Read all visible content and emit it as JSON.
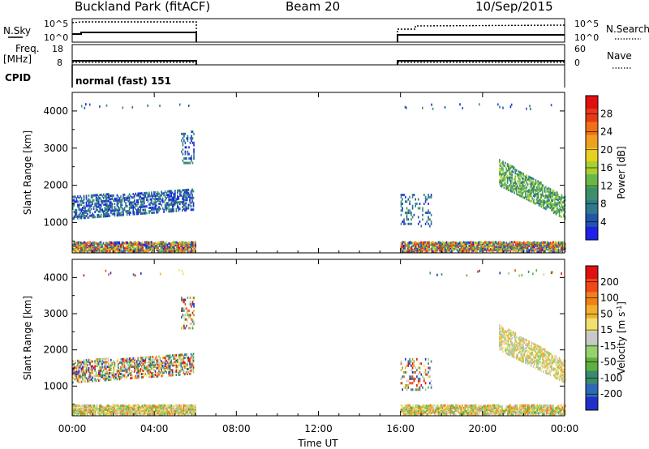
{
  "header": {
    "station": "Buckland Park (fitACF)",
    "beam": "Beam 20",
    "date": "10/Sep/2015"
  },
  "panels": {
    "sky_search": {
      "left_label": "N.Sky",
      "right_label": "N.Search",
      "left_ticks": [
        "10^5",
        "10^0"
      ],
      "right_ticks": [
        "10^5",
        "10^0"
      ]
    },
    "freq_nave": {
      "left_label_1": "Freq.",
      "left_label_2": "[MHz]",
      "right_label": "Nave",
      "left_ticks": [
        "18",
        "8"
      ],
      "right_ticks": [
        "60",
        "0"
      ]
    },
    "cpid": {
      "label": "CPID",
      "text": "normal (fast) 151"
    }
  },
  "colors": {
    "power": [
      "#1e22e6",
      "#2255aa",
      "#2e7a8c",
      "#3c8f6a",
      "#68b848",
      "#a8d030",
      "#e8d020",
      "#f0a020",
      "#f07018",
      "#e83818",
      "#e01010"
    ],
    "velocity": [
      "#2030c8",
      "#2e6ab4",
      "#3a8a6e",
      "#60b040",
      "#98d070",
      "#c8c8c8",
      "#f0e070",
      "#f0b030",
      "#f08018",
      "#f04818",
      "#e01010"
    ]
  },
  "chart_data": [
    {
      "type": "heatmap",
      "name": "power",
      "x_ticks": [
        "00:00",
        "04:00",
        "08:00",
        "12:00",
        "16:00",
        "20:00",
        "00:00"
      ],
      "x_range_hours": [
        0,
        24
      ],
      "y_label": "Slant Range [km]",
      "y_ticks": [
        1000,
        2000,
        3000,
        4000
      ],
      "y_range_km": [
        180,
        4500
      ],
      "colorbar_label": "Power [dB]",
      "colorbar_ticks": [
        "4",
        "8",
        "12",
        "16",
        "20",
        "24",
        "28"
      ],
      "colorbar_range": [
        0,
        30
      ],
      "data_intervals_hours": [
        [
          0,
          6
        ],
        [
          16,
          24
        ]
      ],
      "echo_regions": [
        {
          "t0": 0.0,
          "t1": 6.0,
          "r0": 200,
          "r1": 420,
          "power": "mixed"
        },
        {
          "t0": 0.0,
          "t1": 5.9,
          "r0_start": 1100,
          "r1_start": 1700,
          "r0_end": 1350,
          "r1_end": 1900,
          "power": "low-mid"
        },
        {
          "t0": 5.3,
          "t1": 5.9,
          "r0": 2600,
          "r1": 3500,
          "power": "low-mid"
        },
        {
          "t0": 16.0,
          "t1": 24.0,
          "r0": 200,
          "r1": 480,
          "power": "mixed"
        },
        {
          "t0": 16.0,
          "t1": 17.5,
          "r0": 900,
          "r1": 1800,
          "power": "low"
        },
        {
          "t0": 20.8,
          "t1": 24.0,
          "r0_start": 2000,
          "r1_start": 2700,
          "r0_end": 1100,
          "r1_end": 1700,
          "power": "high"
        }
      ]
    },
    {
      "type": "heatmap",
      "name": "velocity",
      "x_ticks": [
        "00:00",
        "04:00",
        "08:00",
        "12:00",
        "16:00",
        "20:00",
        "00:00"
      ],
      "x_range_hours": [
        0,
        24
      ],
      "x_label": "Time UT",
      "y_label": "Slant Range [km]",
      "y_ticks": [
        1000,
        2000,
        3000,
        4000
      ],
      "y_range_km": [
        180,
        4500
      ],
      "colorbar_label": "Velocity [m s^-1]",
      "colorbar_ticks": [
        "200",
        "100",
        "50",
        "15",
        "-15",
        "-50",
        "-100",
        "-200"
      ],
      "data_intervals_hours": [
        [
          0,
          6
        ],
        [
          16,
          24
        ]
      ]
    },
    {
      "type": "line",
      "name": "N.Sky / N.Search",
      "x_range_hours": [
        0,
        24
      ],
      "segments_hours": [
        [
          0,
          6
        ],
        [
          16,
          24
        ]
      ]
    },
    {
      "type": "line",
      "name": "Freq / Nave",
      "x_range_hours": [
        0,
        24
      ],
      "segments_hours": [
        [
          0,
          6
        ],
        [
          16,
          24
        ]
      ]
    }
  ]
}
